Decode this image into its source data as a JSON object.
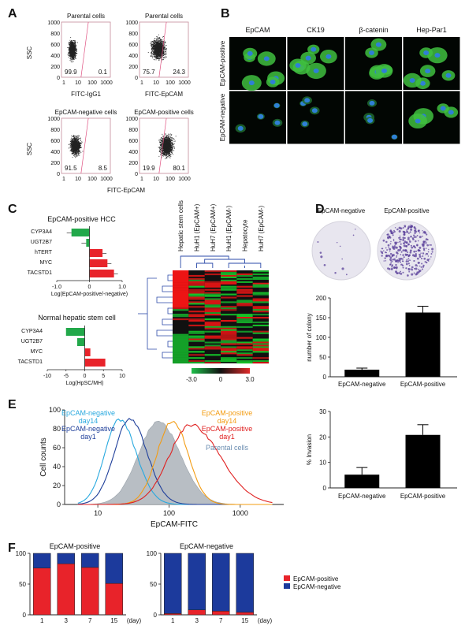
{
  "panels": {
    "A": "A",
    "B": "B",
    "C": "C",
    "D": "D",
    "E": "E",
    "F": "F"
  },
  "panel_a": {
    "plots": [
      {
        "title": "Parental cells",
        "q_left": "99.9",
        "q_right": "0.1"
      },
      {
        "title": "Parental cells",
        "q_left": "75.7",
        "q_right": "24.3"
      },
      {
        "title": "EpCAM-negative cells",
        "q_left": "91.5",
        "q_right": "8.5"
      },
      {
        "title": "EpCAM-positive cells",
        "q_left": "19.9",
        "q_right": "80.1"
      }
    ],
    "y_ticks": [
      "1000",
      "800",
      "600",
      "400",
      "200",
      "0"
    ],
    "x_ticks": [
      "1",
      "10",
      "100",
      "1000"
    ],
    "ylabel": "SSC",
    "xlabel_top_left": "FITC-IgG1",
    "xlabel_top_right": "FITC-EpCAM",
    "xlabel_bottom": "FITC-EpCAM"
  },
  "panel_b": {
    "columns": [
      "EpCAM",
      "CK19",
      "β-catenin",
      "Hep-Par1"
    ],
    "rows": [
      "EpCAM-positive",
      "EpCAM-negative"
    ]
  },
  "chart_data": [
    {
      "type": "bar",
      "title": "EpCAM-positive HCC",
      "categories": [
        "CYP3A4",
        "UGT2B7",
        "hTERT",
        "MYC",
        "TACSTD1"
      ],
      "values": [
        -0.55,
        -0.1,
        0.4,
        0.55,
        0.75
      ],
      "xlabel": "Log(EpCAM-positive/-negative)",
      "xlim": [
        -1.0,
        1.0
      ],
      "x_ticks": [
        "-1.0",
        "0",
        "1.0"
      ]
    },
    {
      "type": "bar",
      "title": "Normal hepatic stem cell",
      "categories": [
        "CYP3A4",
        "UGT2B7",
        "MYC",
        "TACSTD1"
      ],
      "values": [
        -5,
        -2,
        1.5,
        5.5
      ],
      "xlabel": "Log(HpSC/MH)",
      "xlim": [
        -10,
        10
      ],
      "x_ticks": [
        "-10",
        "-5",
        "0",
        "5",
        "10"
      ]
    },
    {
      "type": "heatmap",
      "columns": [
        "Hepatic stem cells",
        "HuH1 (EpCAM+)",
        "HuH7 (EpCAM+)",
        "HuH1 (EpCAM-)",
        "Hepatocyte",
        "HuH7 (EpCAM-)"
      ],
      "scale_ticks": [
        "-3.0",
        "0",
        "3.0"
      ]
    },
    {
      "type": "bar",
      "categories": [
        "EpCAM-negative",
        "EpCAM-positive"
      ],
      "values": [
        18,
        163
      ],
      "ylabel": "number of colony",
      "ylim": [
        0,
        200
      ],
      "y_ticks": [
        "0",
        "50",
        "100",
        "150",
        "200"
      ]
    },
    {
      "type": "line",
      "xlabel": "EpCAM-FITC",
      "ylabel": "Cell counts",
      "x_ticks": [
        "10",
        "100",
        "1000"
      ],
      "y_ticks": [
        "0",
        "20",
        "40",
        "60",
        "80",
        "100"
      ],
      "ylim": [
        0,
        100
      ],
      "series": [
        {
          "name": "EpCAM-negative day14",
          "color": "#29a9df"
        },
        {
          "name": "EpCAM-negative day1",
          "color": "#1f3f9a"
        },
        {
          "name": "EpCAM-positive day14",
          "color": "#f39c12"
        },
        {
          "name": "EpCAM-positive day1",
          "color": "#e02020"
        },
        {
          "name": "Parental cells",
          "color": "#9aa3ab"
        }
      ]
    },
    {
      "type": "bar",
      "categories": [
        "EpCAM-negative",
        "EpCAM-positive"
      ],
      "values": [
        5.2,
        20.8
      ],
      "ylabel": "% Invasion",
      "ylim": [
        0,
        30
      ],
      "y_ticks": [
        "0",
        "10",
        "20",
        "30"
      ]
    },
    {
      "type": "bar",
      "title": "EpCAM-positive",
      "stacked": true,
      "categories": [
        "1",
        "3",
        "7",
        "15"
      ],
      "x_unit": "(day)",
      "series": [
        {
          "name": "EpCAM-positive",
          "values": [
            76,
            83,
            77,
            51
          ]
        },
        {
          "name": "EpCAM-negative",
          "values": [
            24,
            17,
            23,
            49
          ]
        }
      ],
      "y_ticks": [
        "0",
        "50",
        "100"
      ],
      "ylim": [
        0,
        100
      ]
    },
    {
      "type": "bar",
      "title": "EpCAM-negative",
      "stacked": true,
      "categories": [
        "1",
        "3",
        "7",
        "15"
      ],
      "x_unit": "(day)",
      "series": [
        {
          "name": "EpCAM-positive",
          "values": [
            2,
            8,
            6,
            4
          ]
        },
        {
          "name": "EpCAM-negative",
          "values": [
            98,
            92,
            94,
            96
          ]
        }
      ],
      "y_ticks": [
        "0",
        "50",
        "100"
      ],
      "ylim": [
        0,
        100
      ]
    }
  ],
  "panel_d": {
    "images": [
      "EpCAM-negative",
      "EpCAM-positive"
    ]
  },
  "panel_e": {
    "labels": {
      "neg14": "EpCAM-negative\nday14",
      "neg1": "EpCAM-negative\nday1",
      "pos14": "EpCAM-positive\nday14",
      "pos1": "EpCAM-positive\nday1",
      "par": "Parental cells"
    }
  },
  "panel_f": {
    "legend": [
      "EpCAM-positive",
      "EpCAM-negative"
    ],
    "colors": {
      "pos": "#e8232a",
      "neg": "#1c3a9c",
      "green": "#22a84a"
    }
  }
}
